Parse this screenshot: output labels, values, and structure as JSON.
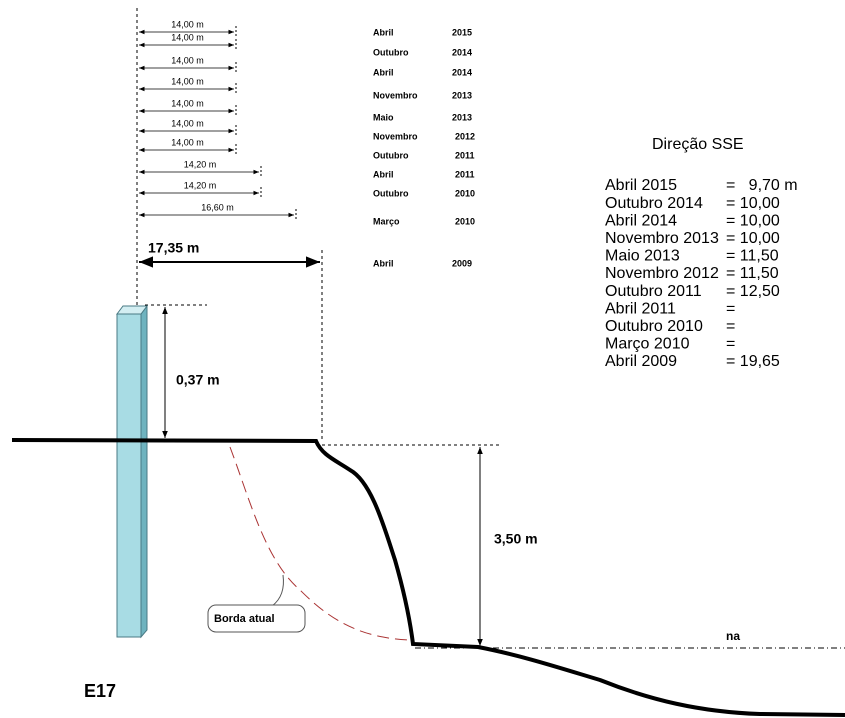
{
  "measurements": [
    "14,00 m",
    "14,00 m",
    "14,00 m",
    "14,00 m",
    "14,00 m",
    "14,00 m",
    "14,00 m",
    "14,20 m",
    "14,20 m",
    "16,60 m"
  ],
  "total_measurement": "17,35 m",
  "dates": [
    {
      "month": "Abril",
      "year": "2015"
    },
    {
      "month": "Outubro",
      "year": "2014"
    },
    {
      "month": "Abril",
      "year": "2014"
    },
    {
      "month": "Novembro",
      "year": "2013"
    },
    {
      "month": "Maio",
      "year": "2013"
    },
    {
      "month": "Novembro",
      "year": "2012"
    },
    {
      "month": "Outubro",
      "year": "2011"
    },
    {
      "month": "Abril",
      "year": "2011"
    },
    {
      "month": "Outubro",
      "year": "2010"
    },
    {
      "month": "Março",
      "year": "2010"
    },
    {
      "month": "Abril",
      "year": "2009"
    }
  ],
  "direction": {
    "title": "Direção SSE",
    "entries": [
      {
        "date": "Abril 2015",
        "value": "=   9,70 m"
      },
      {
        "date": "Outubro 2014",
        "value": "= 10,00"
      },
      {
        "date": "Abril 2014",
        "value": "= 10,00"
      },
      {
        "date": "Novembro 2013",
        "value": "= 10,00"
      },
      {
        "date": "Maio 2013",
        "value": "= 11,50"
      },
      {
        "date": "Novembro 2012",
        "value": "= 11,50"
      },
      {
        "date": "Outubro 2011",
        "value": "= 12,50"
      },
      {
        "date": "Abril 2011",
        "value": "="
      },
      {
        "date": "Outubro 2010",
        "value": "="
      },
      {
        "date": "Março 2010",
        "value": "="
      },
      {
        "date": "Abril 2009",
        "value": "= 19,65"
      }
    ]
  },
  "post_height": "0,37 m",
  "bank_height": "3,50 m",
  "current_edge": "Borda atual",
  "water_level": "na",
  "station": "E17"
}
